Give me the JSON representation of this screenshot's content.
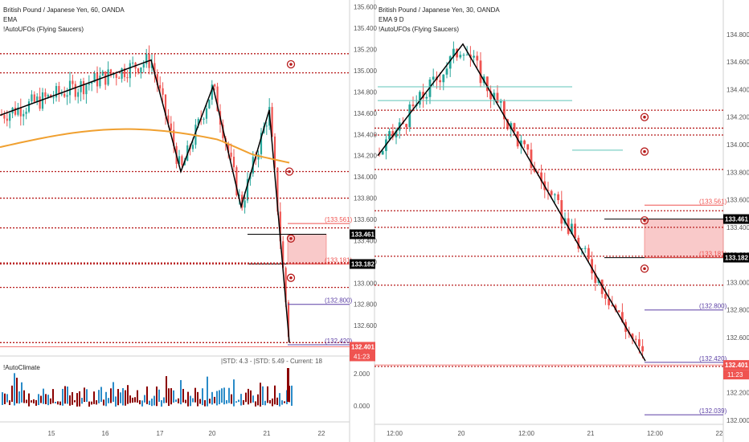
{
  "colors": {
    "up": "#26a69a",
    "down": "#ef5350",
    "ema": "#f0a030",
    "dotted": "#b71c1c",
    "purple": "#5b3fa5",
    "zone": "#f8c0c0",
    "tag_black": "#000000",
    "tag_red": "#ef5350",
    "climate_up": "#2a8bc8",
    "climate_down": "#8b0000"
  },
  "left_panel": {
    "title": "British Pound / Japanese Yen, 60, OANDA",
    "ema_label": "EMA",
    "ufo_label": "!AutoUFOs (Flying Saucers)",
    "indicator_title": "!AutoClimate",
    "indicator_stats": "|STD: 4.3 - |STD: 5.49 - Current: 18",
    "indicator_ticks": [
      "2.000",
      "0.000"
    ],
    "price_ticks": [
      "135.600",
      "135.400",
      "135.200",
      "135.000",
      "134.800",
      "134.600",
      "134.400",
      "134.200",
      "134.000",
      "133.800",
      "133.600",
      "133.400",
      "133.200",
      "133.000",
      "132.800",
      "132.600"
    ],
    "level_tags": [
      "(133.561)",
      "(133.181)",
      "(132.800)",
      "(132.420)"
    ],
    "price_tags": {
      "upper": "133.461",
      "middle": "133.182",
      "last": "132.401",
      "countdown": "41:23"
    },
    "x_ticks": [
      "15",
      "16",
      "17",
      "20",
      "21",
      "22"
    ]
  },
  "right_panel": {
    "title": "British Pound / Japanese Yen, 30, OANDA",
    "ema_label": "EMA 9 D",
    "ufo_label": "!AutoUFOs (Flying Saucers)",
    "price_ticks": [
      "134.800",
      "134.600",
      "134.400",
      "134.200",
      "134.000",
      "133.800",
      "133.600",
      "133.400",
      "133.200",
      "133.000",
      "132.800",
      "132.600",
      "132.400",
      "132.200",
      "132.000"
    ],
    "level_tags": [
      "(133.561)",
      "(133.181)",
      "(132.800)",
      "(132.420)",
      "(132.039)"
    ],
    "price_tags": {
      "upper": "133.461",
      "middle": "133.182",
      "last": "132.401",
      "countdown": "11:23"
    },
    "x_ticks": [
      "12:00",
      "20",
      "12:00",
      "21",
      "12:00",
      "22"
    ]
  },
  "chart_data": [
    {
      "type": "candlestick",
      "title": "British Pound / Japanese Yen, 60, OANDA",
      "ylim": [
        132.45,
        135.62
      ],
      "x_ticks": [
        "15",
        "16",
        "17",
        "20",
        "21",
        "22"
      ],
      "zigzag_pivots": [
        134.58,
        135.1,
        134.05,
        134.85,
        133.72,
        134.63,
        132.44
      ],
      "horizontal_levels": [
        135.16,
        134.98,
        134.05,
        133.8,
        133.52,
        133.19,
        133.18,
        132.96,
        132.44
      ],
      "zone": {
        "from": 133.18,
        "to": 133.46
      },
      "ema_start": 134.28,
      "ema_peak": 134.45,
      "ema_end": 134.32,
      "last": 132.401
    },
    {
      "type": "candlestick",
      "title": "British Pound / Japanese Yen, 30, OANDA",
      "ylim": [
        131.97,
        134.98
      ],
      "x_ticks": [
        "12:00",
        "20",
        "12:00",
        "21",
        "12:00",
        "22"
      ],
      "zigzag_pivots": [
        133.92,
        134.73,
        132.43
      ],
      "horizontal_levels": [
        134.25,
        134.12,
        134.07,
        133.82,
        133.52,
        133.4,
        133.19,
        132.98,
        132.39
      ],
      "zone": {
        "from": 133.18,
        "to": 133.46
      },
      "last": 132.401
    }
  ]
}
